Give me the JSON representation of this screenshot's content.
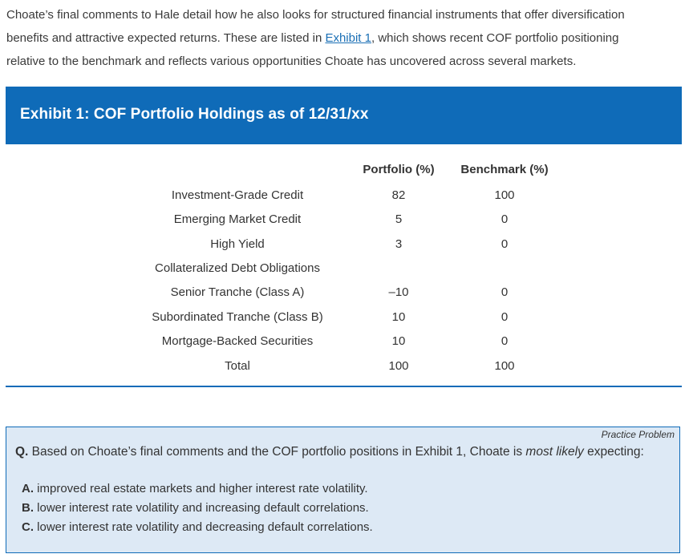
{
  "intro": {
    "line1": "Choate’s final comments to Hale detail how he also looks for structured financial instruments that offer diversification",
    "line2_pre": "benefits and attractive expected returns. These are listed in ",
    "line2_link": "Exhibit 1",
    "line2_post": ", which shows recent COF portfolio positioning",
    "line3": "relative to the benchmark and reflects various opportunities Choate has uncovered across several markets."
  },
  "exhibit": {
    "title": "Exhibit 1:  COF Portfolio Holdings as of 12/31/xx",
    "col_portfolio": "Portfolio (%)",
    "col_benchmark": "Benchmark (%)",
    "rows": [
      {
        "label": "Investment-Grade Credit",
        "portfolio": "82",
        "benchmark": "100"
      },
      {
        "label": "Emerging Market Credit",
        "portfolio": "5",
        "benchmark": "0"
      },
      {
        "label": "High Yield",
        "portfolio": "3",
        "benchmark": "0"
      },
      {
        "label": "Collateralized Debt Obligations",
        "portfolio": "",
        "benchmark": ""
      },
      {
        "label": "Senior Tranche (Class A)",
        "portfolio": "–10",
        "benchmark": "0"
      },
      {
        "label": "Subordinated Tranche (Class B)",
        "portfolio": "10",
        "benchmark": "0"
      },
      {
        "label": "Mortgage-Backed Securities",
        "portfolio": "10",
        "benchmark": "0"
      },
      {
        "label": "Total",
        "portfolio": "100",
        "benchmark": "100"
      }
    ]
  },
  "practice": {
    "tag": "Practice Problem",
    "q_prefix": "Q.",
    "q_text_pre": " Based on Choate’s final comments and the COF portfolio positions in Exhibit 1, Choate is ",
    "q_text_em": "most likely",
    "q_text_post": " expecting:",
    "options": [
      {
        "letter": "A.",
        "text": " improved real estate markets and higher interest rate volatility."
      },
      {
        "letter": "B.",
        "text": " lower interest rate volatility and increasing default correlations."
      },
      {
        "letter": "C.",
        "text": " lower interest rate volatility and decreasing default correlations."
      }
    ]
  }
}
